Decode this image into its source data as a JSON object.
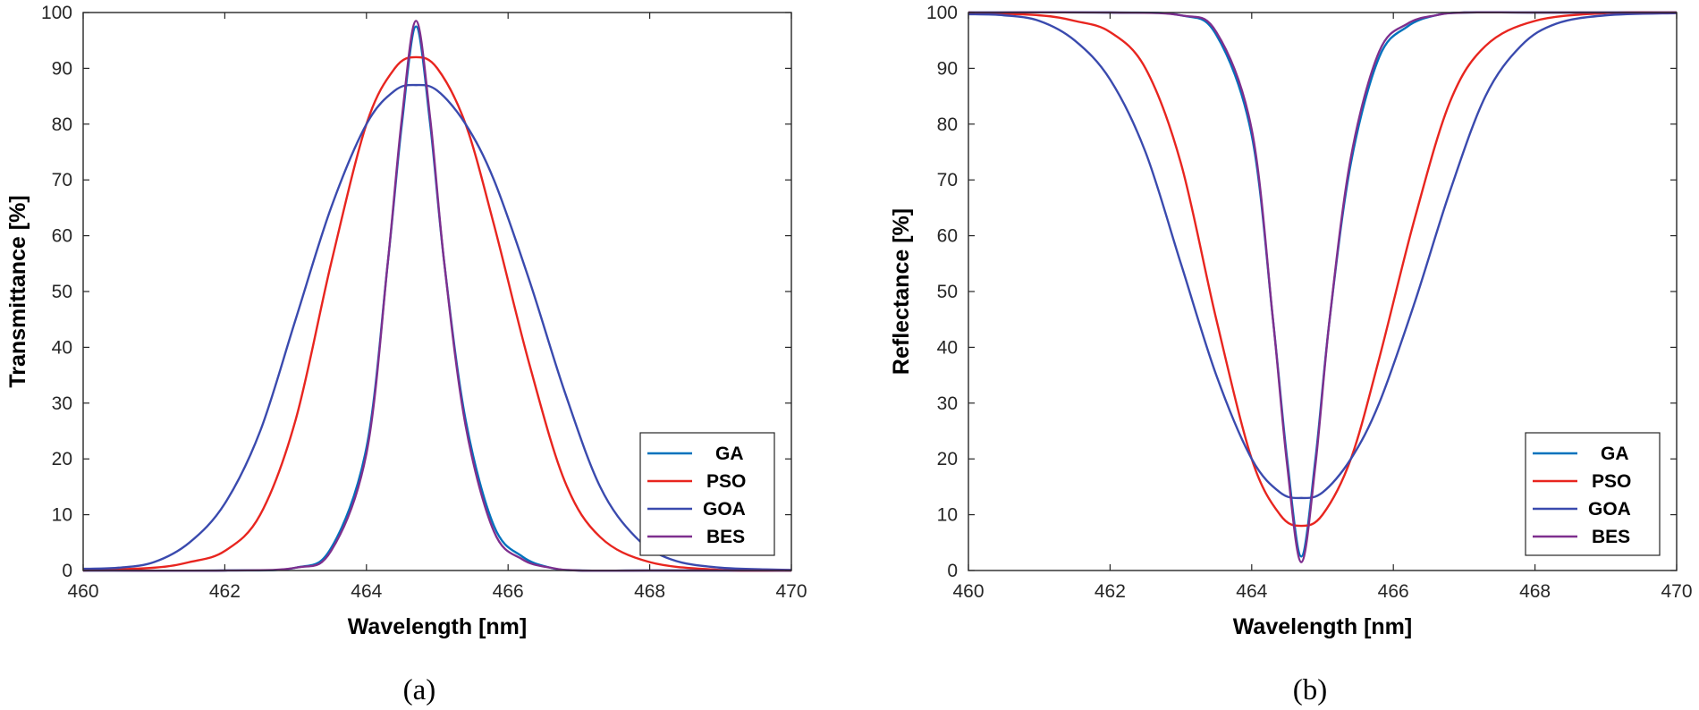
{
  "chart_data": [
    {
      "type": "line",
      "panel": "a",
      "caption": "(a)",
      "xlabel": "Wavelength [nm]",
      "ylabel": "Transmittance [%]",
      "xlim": [
        460,
        470
      ],
      "ylim": [
        0,
        100
      ],
      "xticks": [
        460,
        462,
        464,
        466,
        468,
        470
      ],
      "yticks": [
        0,
        10,
        20,
        30,
        40,
        50,
        60,
        70,
        80,
        90,
        100
      ],
      "legend_position": "bottom-right",
      "series": [
        {
          "name": "GA",
          "color": "#0072BD",
          "x": [
            460,
            462,
            463,
            463.5,
            464,
            464.3,
            464.5,
            464.7,
            464.9,
            465.1,
            465.4,
            465.8,
            466.2,
            466.6,
            467,
            468,
            470
          ],
          "y": [
            0,
            0,
            0.5,
            4,
            22,
            55,
            80,
            97.5,
            80,
            55,
            27,
            8,
            2.5,
            0.5,
            0,
            0,
            0
          ]
        },
        {
          "name": "PSO",
          "color": "#E8251F",
          "x": [
            460,
            461,
            461.5,
            462,
            462.5,
            463,
            463.5,
            464,
            464.4,
            464.7,
            465,
            465.4,
            465.8,
            466.3,
            466.8,
            467.3,
            468,
            469,
            470
          ],
          "y": [
            0,
            0.5,
            1.5,
            3.5,
            10,
            27,
            55,
            80,
            90,
            92,
            90,
            80,
            62,
            37,
            16,
            6,
            1.5,
            0.1,
            0
          ]
        },
        {
          "name": "GOA",
          "color": "#3A4AAE",
          "x": [
            460,
            460.5,
            461,
            461.5,
            462,
            462.5,
            463,
            463.5,
            464,
            464.4,
            464.7,
            465,
            465.4,
            465.8,
            466.3,
            466.8,
            467.3,
            467.8,
            468.3,
            469,
            470
          ],
          "y": [
            0.3,
            0.5,
            1.5,
            5,
            12,
            25,
            45,
            65,
            80,
            86,
            87,
            86,
            80,
            70,
            52,
            32,
            15,
            6,
            2,
            0.5,
            0.1
          ]
        },
        {
          "name": "BES",
          "color": "#7E2F8E",
          "x": [
            460,
            462,
            463,
            463.5,
            464,
            464.3,
            464.5,
            464.7,
            464.9,
            465.1,
            465.4,
            465.8,
            466.2,
            466.6,
            467,
            468,
            470
          ],
          "y": [
            0,
            0,
            0.5,
            3.5,
            21,
            55,
            81,
            98.5,
            81,
            55,
            26,
            7,
            2,
            0.5,
            0,
            0,
            0
          ]
        }
      ]
    },
    {
      "type": "line",
      "panel": "b",
      "caption": "(b)",
      "xlabel": "Wavelength [nm]",
      "ylabel": "Reflectance [%]",
      "xlim": [
        460,
        470
      ],
      "ylim": [
        0,
        100
      ],
      "xticks": [
        460,
        462,
        464,
        466,
        468,
        470
      ],
      "yticks": [
        0,
        10,
        20,
        30,
        40,
        50,
        60,
        70,
        80,
        90,
        100
      ],
      "legend_position": "bottom-right",
      "series": [
        {
          "name": "GA",
          "color": "#0072BD",
          "x": [
            460,
            462,
            463,
            463.5,
            464,
            464.3,
            464.5,
            464.7,
            464.9,
            465.1,
            465.4,
            465.8,
            466.2,
            466.6,
            467,
            468,
            470
          ],
          "y": [
            100,
            100,
            99.5,
            96,
            78,
            45,
            20,
            2.5,
            20,
            45,
            73,
            92,
            97.5,
            99.5,
            100,
            100,
            100
          ]
        },
        {
          "name": "PSO",
          "color": "#E8251F",
          "x": [
            460,
            461,
            461.5,
            462,
            462.5,
            463,
            463.5,
            464,
            464.4,
            464.7,
            465,
            465.4,
            465.8,
            466.3,
            466.8,
            467.3,
            468,
            469,
            470
          ],
          "y": [
            100,
            99.5,
            98.5,
            96.5,
            90,
            73,
            45,
            20,
            10,
            8,
            10,
            20,
            38,
            63,
            84,
            94,
            98.5,
            99.9,
            100
          ]
        },
        {
          "name": "GOA",
          "color": "#3A4AAE",
          "x": [
            460,
            460.5,
            461,
            461.5,
            462,
            462.5,
            463,
            463.5,
            464,
            464.4,
            464.7,
            465,
            465.4,
            465.8,
            466.3,
            466.8,
            467.3,
            467.8,
            468.3,
            469,
            470
          ],
          "y": [
            99.7,
            99.5,
            98.5,
            95,
            88,
            75,
            55,
            35,
            20,
            14,
            13,
            14,
            20,
            30,
            48,
            68,
            85,
            94,
            98,
            99.5,
            99.9
          ]
        },
        {
          "name": "BES",
          "color": "#7E2F8E",
          "x": [
            460,
            462,
            463,
            463.5,
            464,
            464.3,
            464.5,
            464.7,
            464.9,
            465.1,
            465.4,
            465.8,
            466.2,
            466.6,
            467,
            468,
            470
          ],
          "y": [
            100,
            100,
            99.5,
            96.5,
            79,
            45,
            19,
            1.5,
            19,
            45,
            74,
            93,
            98,
            99.5,
            100,
            100,
            100
          ]
        }
      ]
    }
  ]
}
